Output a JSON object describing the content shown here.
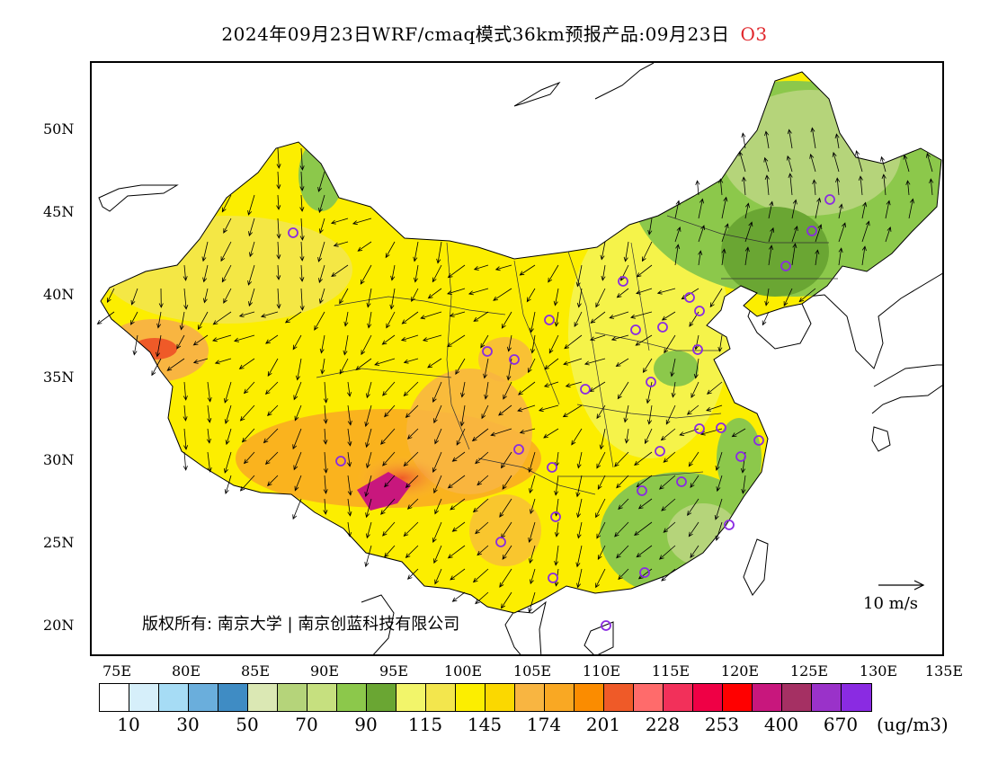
{
  "header": {
    "title": "2024年09月23日WRF/cmaq模式36km预报产品:09月23日",
    "species": "O3"
  },
  "map": {
    "latitude_labels": [
      "50N",
      "45N",
      "40N",
      "35N",
      "30N",
      "25N",
      "20N"
    ],
    "longitude_labels": [
      "75E",
      "80E",
      "85E",
      "90E",
      "95E",
      "100E",
      "105E",
      "110E",
      "115E",
      "120E",
      "125E",
      "130E",
      "135E"
    ],
    "copyright": "版权所有: 南京大学 | 南京创蓝科技有限公司",
    "wind_reference_label": "10 m/s",
    "station_marker_color": "#8a2be2"
  },
  "colorbar": {
    "colors": [
      "#ffffff",
      "#d6effa",
      "#a6dcf5",
      "#6aaedc",
      "#3f8cc4",
      "#dbe8b4",
      "#b5d47a",
      "#c6e07f",
      "#8cc84b",
      "#6aa633",
      "#f2f56a",
      "#f3e64d",
      "#fcee00",
      "#fbd800",
      "#f8b541",
      "#f9a823",
      "#fb8c00",
      "#ef5a28",
      "#ff6b6b",
      "#f2305a",
      "#ef0045",
      "#ff0000",
      "#c8177d",
      "#a53063",
      "#9a32c9",
      "#8a2be2"
    ],
    "labels": [
      "10",
      "30",
      "50",
      "70",
      "90",
      "115",
      "145",
      "174",
      "201",
      "228",
      "253",
      "400",
      "670"
    ],
    "unit": "(ug/m3)"
  }
}
